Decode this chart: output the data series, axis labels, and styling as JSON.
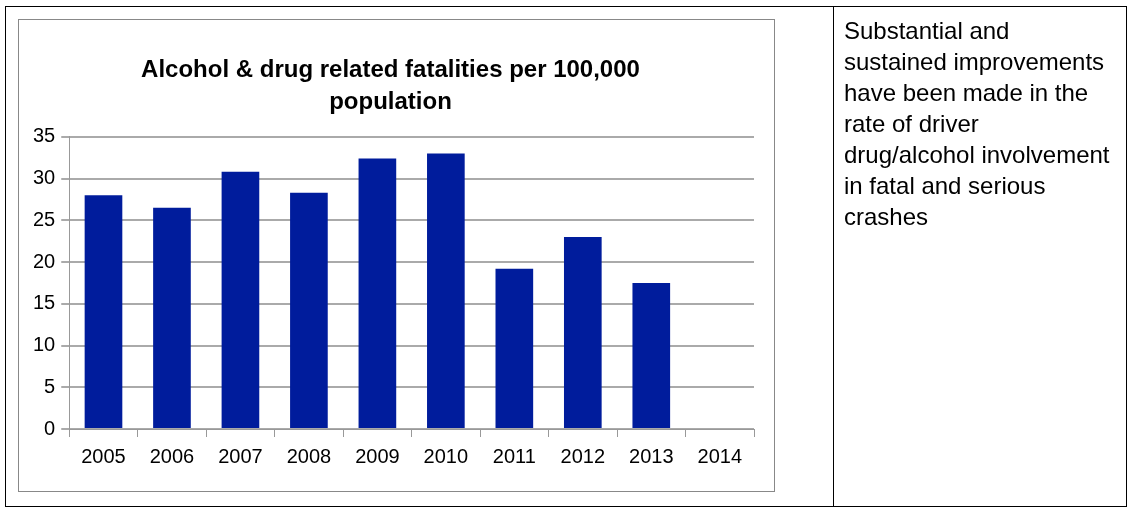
{
  "chart_data": {
    "type": "bar",
    "title": "Alcohol & drug related fatalities per 100,000 population",
    "categories": [
      "2005",
      "2006",
      "2007",
      "2008",
      "2009",
      "2010",
      "2011",
      "2012",
      "2013",
      "2014"
    ],
    "values": [
      28.0,
      26.5,
      30.8,
      28.3,
      32.4,
      33.0,
      19.2,
      23.0,
      17.5,
      null
    ],
    "color": "#001c9c",
    "ylim": [
      0,
      35
    ],
    "yticks": [
      0,
      5,
      10,
      15,
      20,
      25,
      30,
      35
    ],
    "grid": "y",
    "legend": false,
    "annotations": [
      "Substantial and sustained improvements have been made in the rate of driver drug/alcohol involvement in fatal and serious crashes"
    ]
  }
}
